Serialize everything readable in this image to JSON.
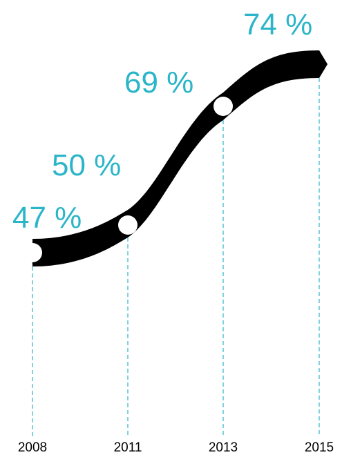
{
  "colors": {
    "ribbon": "#000000",
    "accent": "#2bb5c8",
    "marker": "#ffffff",
    "year_text": "#000000"
  },
  "chart_data": {
    "type": "line",
    "title": "",
    "xlabel": "",
    "ylabel": "",
    "x": [
      "2008",
      "2011",
      "2013",
      "2015"
    ],
    "values": [
      47,
      50,
      69,
      74
    ],
    "value_labels": [
      "47 %",
      "50 %",
      "69 %",
      "74 %"
    ],
    "grid": false,
    "style": "thick ribbon with circular markers and dashed drop lines"
  }
}
